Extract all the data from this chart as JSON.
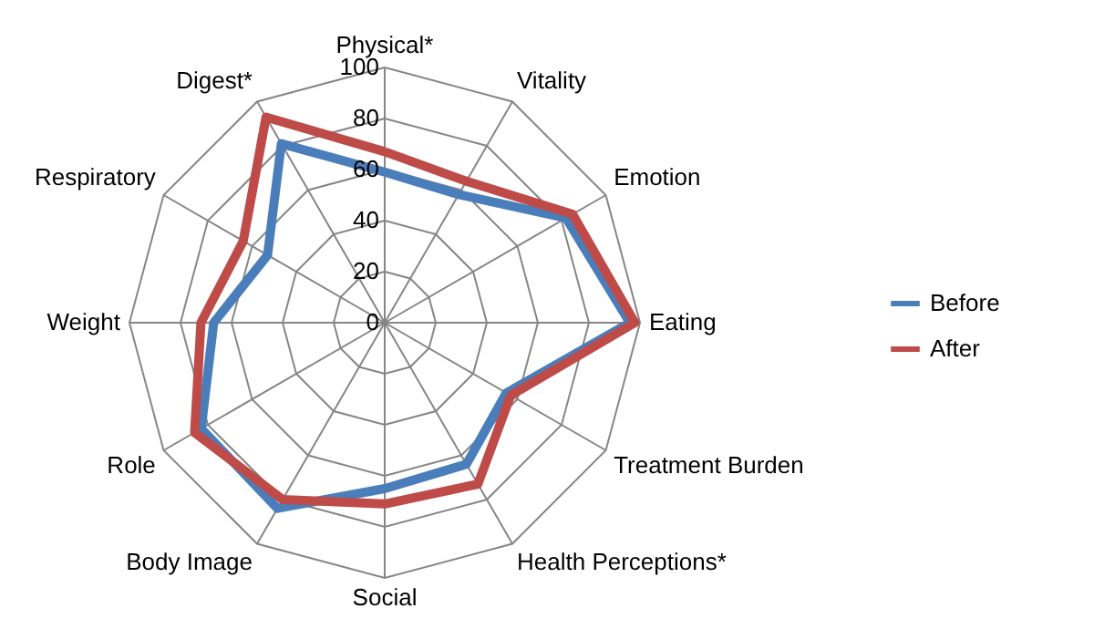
{
  "chart_data": {
    "type": "radar",
    "categories": [
      "Physical*",
      "Vitality",
      "Emotion",
      "Eating",
      "Treatment Burden",
      "Health Perceptions*",
      "Social",
      "Body Image",
      "Role",
      "Weight",
      "Respiratory",
      "Digest*"
    ],
    "series": [
      {
        "name": "Before",
        "color": "#4a7ebb",
        "values": [
          59,
          58,
          82,
          96,
          55,
          64,
          65,
          84,
          83,
          67,
          53,
          81
        ]
      },
      {
        "name": "After",
        "color": "#be4b48",
        "values": [
          67,
          64,
          85,
          98,
          57,
          73,
          71,
          80,
          86,
          72,
          64,
          93
        ]
      }
    ],
    "ylim": [
      0,
      100
    ],
    "yticks": [
      0,
      20,
      40,
      60,
      80,
      100
    ],
    "grid": true,
    "legend": "right"
  }
}
